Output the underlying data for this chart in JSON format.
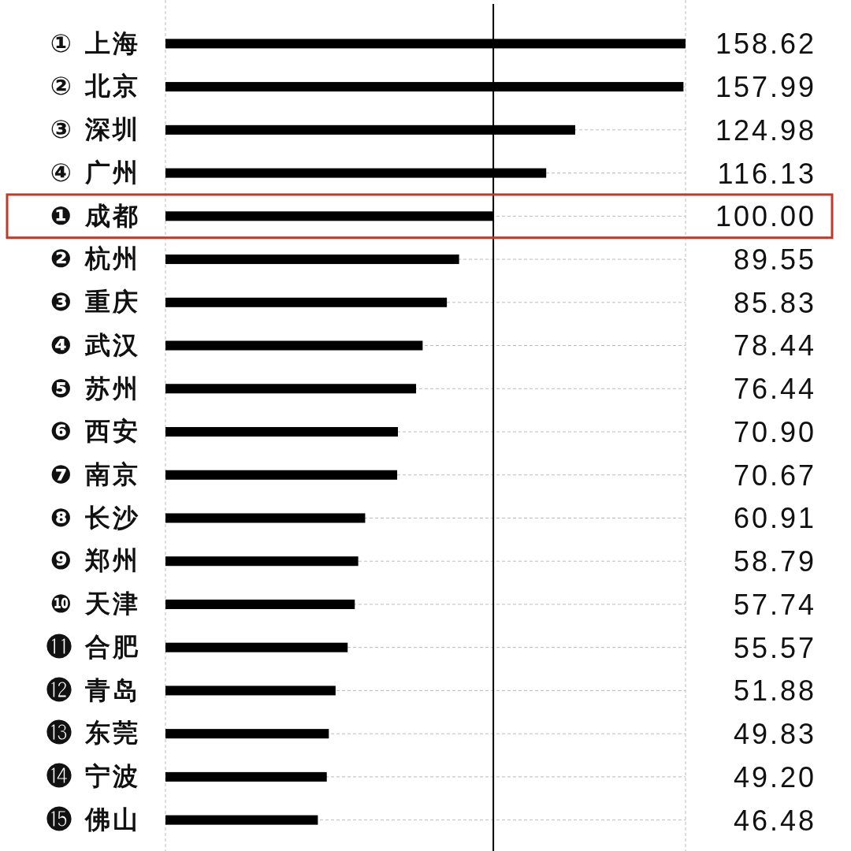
{
  "chart_data": {
    "type": "bar",
    "orientation": "horizontal",
    "categories": [
      "① 上海",
      "② 北京",
      "③ 深圳",
      "④ 广州",
      "❶ 成都",
      "❷ 杭州",
      "❸ 重庆",
      "❹ 武汉",
      "❺ 苏州",
      "❻ 西安",
      "❼ 南京",
      "❽ 长沙",
      "❾ 郑州",
      "❿ 天津",
      "⓫ 合肥",
      "⓬ 青岛",
      "⓭ 东莞",
      "⓮ 宁波",
      "⓯ 佛山"
    ],
    "values": [
      158.62,
      157.99,
      124.98,
      116.13,
      100.0,
      89.55,
      85.83,
      78.44,
      76.44,
      70.9,
      70.67,
      60.91,
      58.79,
      57.74,
      55.57,
      51.88,
      49.83,
      49.2,
      46.48
    ],
    "value_labels": [
      "158.62",
      "157.99",
      "124.98",
      "116.13",
      "100.00",
      "89.55",
      "85.83",
      "78.44",
      "76.44",
      "70.90",
      "70.67",
      "60.91",
      "58.79",
      "57.74",
      "55.57",
      "51.88",
      "49.83",
      "49.20",
      "46.48"
    ],
    "color": "#000000",
    "xlim": [
      0,
      158.62
    ],
    "tick_labels": "y",
    "grid": "y",
    "ref_lines": [
      {
        "axis": "x",
        "value": 100,
        "color": "#000000"
      }
    ]
  }
}
